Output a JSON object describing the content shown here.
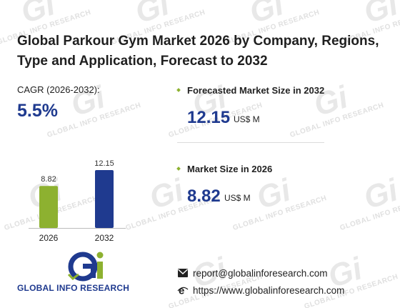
{
  "title": "Global Parkour Gym Market 2026 by Company, Regions, Type and Application, Forecast to 2032",
  "cagr": {
    "label": "CAGR (2026-2032):",
    "value": "5.5%"
  },
  "forecast": {
    "label": "Forecasted Market Size in 2032",
    "value": "12.15",
    "unit": "US$ M"
  },
  "current": {
    "label": "Market Size in 2026",
    "value": "8.82",
    "unit": "US$ M"
  },
  "chart_data": {
    "type": "bar",
    "categories": [
      "2026",
      "2032"
    ],
    "values": [
      8.82,
      12.15
    ],
    "value_labels": [
      "8.82",
      "12.15"
    ],
    "colors": [
      "#8db130",
      "#1f3a8f"
    ],
    "ylim": [
      0,
      12.15
    ],
    "grid": false
  },
  "logo": {
    "text": "GLOBAL INFO RESEARCH",
    "colors": [
      "#1f3a8f",
      "#8db130"
    ]
  },
  "watermark": {
    "text": "GLOBAL INFO RESEARCH"
  },
  "contact": {
    "email": "report@globalinforesearch.com",
    "website": "https://www.globalinforesearch.com",
    "email_icon": "envelope-icon",
    "web_icon": "globe-e-icon"
  }
}
